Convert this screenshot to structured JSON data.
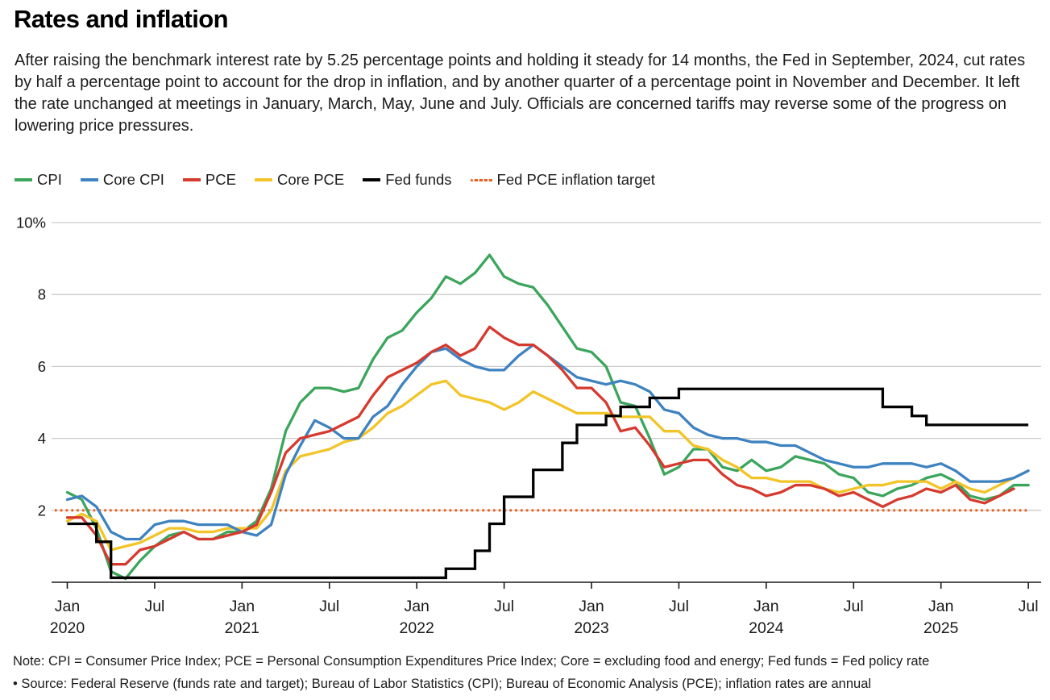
{
  "page": {
    "title": "Rates and inflation",
    "description": "After raising the benchmark interest rate by 5.25 percentage points and holding it steady for 14 months, the Fed in September, 2024, cut rates by half a percentage point to account for the drop in inflation, and by another quarter of a percentage point in November and December. It left the rate unchanged at meetings in January, March, May, June and July. Officials are concerned tariffs may reverse some of the progress on lowering price pressures.",
    "note_line1": "Note: CPI = Consumer Price Index; PCE = Personal Consumption Expenditures Price Index; Core = excluding food and energy; Fed funds = Fed policy rate",
    "note_line2": "• Source: Federal Reserve (funds rate and target); Bureau of Labor Statistics (CPI); Bureau of Economic Analysis (PCE); inflation rates are annual"
  },
  "colors": {
    "cpi": "#3ca55c",
    "core_cpi": "#3e82c0",
    "pce": "#d63a2e",
    "core_pce": "#f2c427",
    "fed_funds": "#000000",
    "target": "#e8611c",
    "gridline": "#cccccc",
    "axis": "#1a1a1a"
  },
  "chart_data": {
    "type": "line",
    "title": "Rates and inflation",
    "x_unit": "month",
    "x_start": "2020-01",
    "x_end": "2025-07",
    "ylim": [
      0,
      10
    ],
    "grid": true,
    "legend_position": "top",
    "y_ticks": [
      2,
      4,
      6,
      8,
      10
    ],
    "y_tick_labels": [
      "2",
      "4",
      "6",
      "8",
      "10%"
    ],
    "x_month_labels": {
      "jan": "Jan",
      "jul": "Jul"
    },
    "x_years": [
      "2020",
      "2021",
      "2022",
      "2023",
      "2024",
      "2025"
    ],
    "draw_order": [
      "CPI",
      "Core PCE",
      "Core CPI",
      "PCE",
      "Fed funds"
    ],
    "series": [
      {
        "name": "CPI",
        "color": "#3ca55c",
        "style": "line",
        "values": [
          2.5,
          2.3,
          1.5,
          0.3,
          0.1,
          0.6,
          1.0,
          1.3,
          1.4,
          1.2,
          1.2,
          1.4,
          1.4,
          1.7,
          2.6,
          4.2,
          5.0,
          5.4,
          5.4,
          5.3,
          5.4,
          6.2,
          6.8,
          7.0,
          7.5,
          7.9,
          8.5,
          8.3,
          8.6,
          9.1,
          8.5,
          8.3,
          8.2,
          7.7,
          7.1,
          6.5,
          6.4,
          6.0,
          5.0,
          4.9,
          4.0,
          3.0,
          3.2,
          3.7,
          3.7,
          3.2,
          3.1,
          3.4,
          3.1,
          3.2,
          3.5,
          3.4,
          3.3,
          3.0,
          2.9,
          2.5,
          2.4,
          2.6,
          2.7,
          2.9,
          3.0,
          2.8,
          2.4,
          2.3,
          2.4,
          2.7,
          2.7
        ]
      },
      {
        "name": "Core CPI",
        "color": "#3e82c0",
        "style": "line",
        "values": [
          2.3,
          2.4,
          2.1,
          1.4,
          1.2,
          1.2,
          1.6,
          1.7,
          1.7,
          1.6,
          1.6,
          1.6,
          1.4,
          1.3,
          1.6,
          3.0,
          3.8,
          4.5,
          4.3,
          4.0,
          4.0,
          4.6,
          4.9,
          5.5,
          6.0,
          6.4,
          6.5,
          6.2,
          6.0,
          5.9,
          5.9,
          6.3,
          6.6,
          6.3,
          6.0,
          5.7,
          5.6,
          5.5,
          5.6,
          5.5,
          5.3,
          4.8,
          4.7,
          4.3,
          4.1,
          4.0,
          4.0,
          3.9,
          3.9,
          3.8,
          3.8,
          3.6,
          3.4,
          3.3,
          3.2,
          3.2,
          3.3,
          3.3,
          3.3,
          3.2,
          3.3,
          3.1,
          2.8,
          2.8,
          2.8,
          2.9,
          3.1
        ]
      },
      {
        "name": "PCE",
        "color": "#d63a2e",
        "style": "line",
        "values": [
          1.8,
          1.8,
          1.3,
          0.5,
          0.5,
          0.9,
          1.0,
          1.2,
          1.4,
          1.2,
          1.2,
          1.3,
          1.4,
          1.6,
          2.5,
          3.6,
          4.0,
          4.1,
          4.2,
          4.4,
          4.6,
          5.2,
          5.7,
          5.9,
          6.1,
          6.4,
          6.6,
          6.3,
          6.5,
          7.1,
          6.8,
          6.6,
          6.6,
          6.3,
          5.9,
          5.4,
          5.4,
          5.0,
          4.2,
          4.3,
          3.8,
          3.2,
          3.3,
          3.4,
          3.4,
          3.0,
          2.7,
          2.6,
          2.4,
          2.5,
          2.7,
          2.7,
          2.6,
          2.4,
          2.5,
          2.3,
          2.1,
          2.3,
          2.4,
          2.6,
          2.5,
          2.7,
          2.3,
          2.2,
          2.4,
          2.6
        ]
      },
      {
        "name": "Core PCE",
        "color": "#f2c427",
        "style": "line",
        "values": [
          1.7,
          1.9,
          1.7,
          0.9,
          1.0,
          1.1,
          1.3,
          1.5,
          1.5,
          1.4,
          1.4,
          1.5,
          1.5,
          1.5,
          2.0,
          3.1,
          3.5,
          3.6,
          3.7,
          3.9,
          4.0,
          4.3,
          4.7,
          4.9,
          5.2,
          5.5,
          5.6,
          5.2,
          5.1,
          5.0,
          4.8,
          5.0,
          5.3,
          5.1,
          4.9,
          4.7,
          4.7,
          4.7,
          4.6,
          4.6,
          4.6,
          4.2,
          4.2,
          3.8,
          3.7,
          3.4,
          3.2,
          2.9,
          2.9,
          2.8,
          2.8,
          2.8,
          2.6,
          2.5,
          2.6,
          2.7,
          2.7,
          2.8,
          2.8,
          2.8,
          2.6,
          2.8,
          2.6,
          2.5,
          2.7,
          2.9
        ]
      },
      {
        "name": "Fed funds",
        "color": "#000000",
        "style": "step",
        "values": [
          1.625,
          1.625,
          1.125,
          0.125,
          0.125,
          0.125,
          0.125,
          0.125,
          0.125,
          0.125,
          0.125,
          0.125,
          0.125,
          0.125,
          0.125,
          0.125,
          0.125,
          0.125,
          0.125,
          0.125,
          0.125,
          0.125,
          0.125,
          0.125,
          0.125,
          0.125,
          0.375,
          0.375,
          0.875,
          1.625,
          2.375,
          2.375,
          3.125,
          3.125,
          3.875,
          4.375,
          4.375,
          4.625,
          4.875,
          4.875,
          5.125,
          5.125,
          5.375,
          5.375,
          5.375,
          5.375,
          5.375,
          5.375,
          5.375,
          5.375,
          5.375,
          5.375,
          5.375,
          5.375,
          5.375,
          5.375,
          4.875,
          4.875,
          4.625,
          4.375,
          4.375,
          4.375,
          4.375,
          4.375,
          4.375,
          4.375,
          4.375
        ]
      },
      {
        "name": "Fed PCE inflation target",
        "color": "#e8611c",
        "style": "dotted-h",
        "value": 2
      }
    ]
  }
}
